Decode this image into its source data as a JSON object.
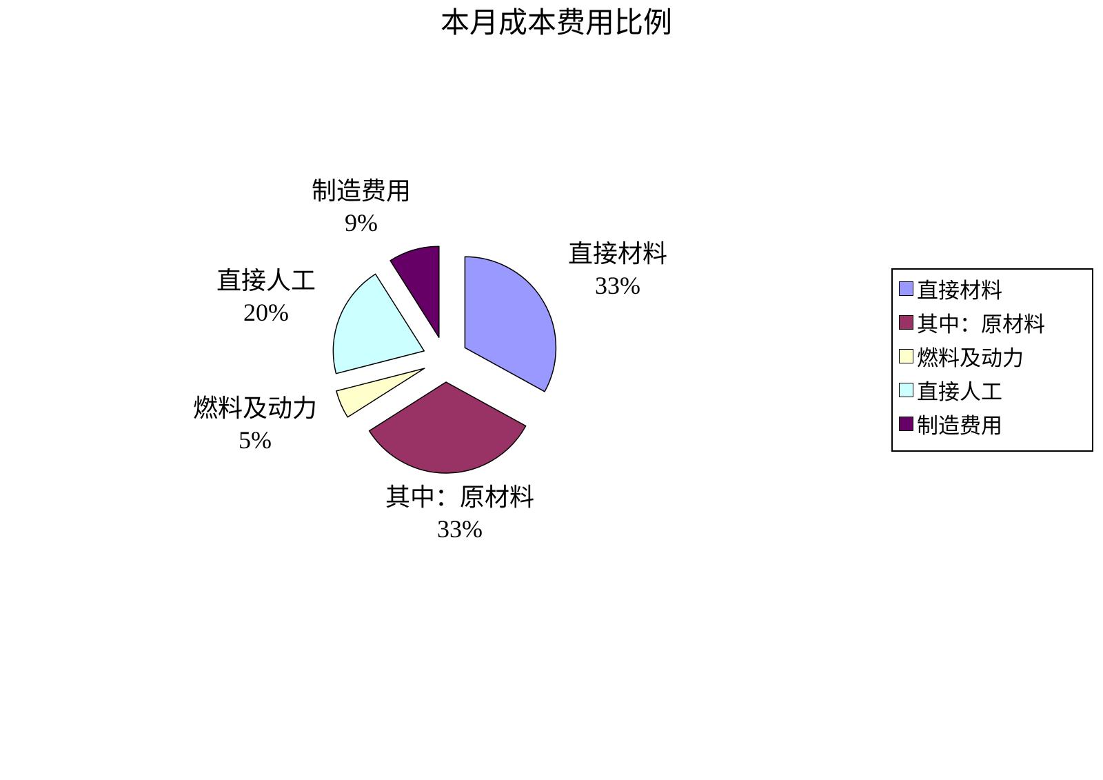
{
  "title": "本月成本费用比例",
  "chart_data": {
    "type": "pie",
    "title": "本月成本费用比例",
    "categories": [
      "直接材料",
      "其中：原材料",
      "燃料及动力",
      "直接人工",
      "制造费用"
    ],
    "values": [
      33,
      33,
      5,
      20,
      9
    ],
    "unit": "%",
    "series": [
      {
        "name": "直接材料",
        "value": 33,
        "label": "33%",
        "color": "#9999FF"
      },
      {
        "name": "其中：原材料",
        "value": 33,
        "label": "33%",
        "color": "#993366"
      },
      {
        "name": "燃料及动力",
        "value": 5,
        "label": "5%",
        "color": "#FFFFCC"
      },
      {
        "name": "直接人工",
        "value": 20,
        "label": "20%",
        "color": "#CCFFFF"
      },
      {
        "name": "制造费用",
        "value": 9,
        "label": "9%",
        "color": "#660066"
      }
    ],
    "exploded": true,
    "start_angle_deg": 0,
    "direction": "clockwise",
    "slice_border_color": "#000000",
    "legend_position": "right",
    "background_color": "#FFFFFF"
  }
}
